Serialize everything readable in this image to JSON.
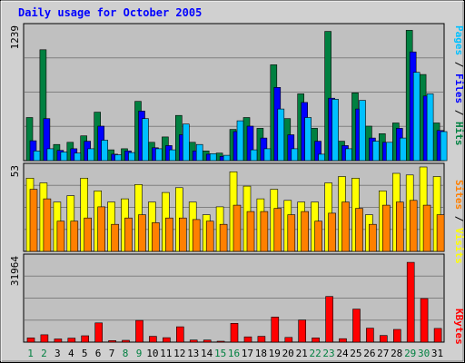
{
  "chart_data": {
    "type": "bar",
    "title": "Daily usage for October 2005",
    "categories": [
      "1",
      "2",
      "3",
      "4",
      "5",
      "6",
      "7",
      "8",
      "9",
      "10",
      "11",
      "12",
      "13",
      "14",
      "15",
      "16",
      "17",
      "18",
      "19",
      "20",
      "21",
      "22",
      "23",
      "24",
      "25",
      "26",
      "27",
      "28",
      "29",
      "30",
      "31"
    ],
    "weekend_days": [
      "1",
      "2",
      "8",
      "9",
      "15",
      "16",
      "22",
      "23",
      "29",
      "30"
    ],
    "panels": [
      {
        "id": "hits-files-pages",
        "max_label": "1239",
        "ymax": 1239,
        "legend": [
          {
            "name": "Pages",
            "color": "#00c0ff"
          },
          {
            "name": "Files",
            "color": "#0000ff"
          },
          {
            "name": "Hits",
            "color": "#008040"
          }
        ],
        "series": [
          {
            "name": "Hits",
            "color": "#008040",
            "values": [
              400,
              1030,
              150,
              170,
              230,
              450,
              100,
              110,
              550,
              170,
              220,
              420,
              170,
              90,
              70,
              290,
              400,
              300,
              890,
              390,
              620,
              300,
              1200,
              180,
              630,
              320,
              250,
              350,
              1210,
              800,
              350
            ]
          },
          {
            "name": "Files",
            "color": "#0000ff",
            "values": [
              185,
              390,
              95,
              110,
              180,
              320,
              60,
              90,
              460,
              120,
              140,
              240,
              90,
              60,
              40,
              270,
              320,
              210,
              680,
              240,
              540,
              180,
              580,
              140,
              480,
              210,
              170,
              300,
              1010,
              600,
              280
            ]
          },
          {
            "name": "Pages",
            "color": "#00c0ff",
            "values": [
              90,
              110,
              80,
              70,
              110,
              190,
              55,
              75,
              390,
              110,
              100,
              340,
              150,
              65,
              50,
              370,
              100,
              110,
              480,
              110,
              400,
              60,
              570,
              110,
              560,
              180,
              170,
              210,
              820,
              620,
              270
            ]
          }
        ]
      },
      {
        "id": "visits-sites",
        "max_label": "53",
        "ymax": 53,
        "legend": [
          {
            "name": "Sites",
            "color": "#ff8000"
          },
          {
            "name": "Visits",
            "color": "#ffff00"
          }
        ],
        "series": [
          {
            "name": "Visits",
            "color": "#ffff00",
            "values": [
              46,
              43,
              31,
              35,
              46,
              38,
              31,
              33,
              42,
              31,
              37,
              40,
              31,
              23,
              28,
              50,
              41,
              33,
              39,
              32,
              31,
              31,
              43,
              47,
              46,
              23,
              38,
              49,
              48,
              53,
              47
            ]
          },
          {
            "name": "Sites",
            "color": "#ff8000",
            "values": [
              39,
              33,
              19,
              19,
              21,
              28,
              17,
              21,
              23,
              18,
              21,
              21,
              20,
              19,
              17,
              29,
              25,
              25,
              27,
              23,
              25,
              19,
              24,
              31,
              27,
              17,
              29,
              31,
              32,
              29,
              23
            ]
          }
        ]
      },
      {
        "id": "kbytes",
        "max_label": "31964",
        "ymax": 31964,
        "legend": [
          {
            "name": "KBytes",
            "color": "#ff0000"
          }
        ],
        "series": [
          {
            "name": "KBytes",
            "color": "#ff0000",
            "values": [
              1600,
              2800,
              1200,
              1500,
              2400,
              7300,
              600,
              700,
              8200,
              2200,
              1700,
              5800,
              800,
              800,
              300,
              7100,
              2000,
              2200,
              9500,
              1800,
              8400,
              1600,
              17300,
              1300,
              12500,
              5300,
              2500,
              4800,
              30200,
              16500,
              5200
            ]
          }
        ]
      }
    ]
  }
}
